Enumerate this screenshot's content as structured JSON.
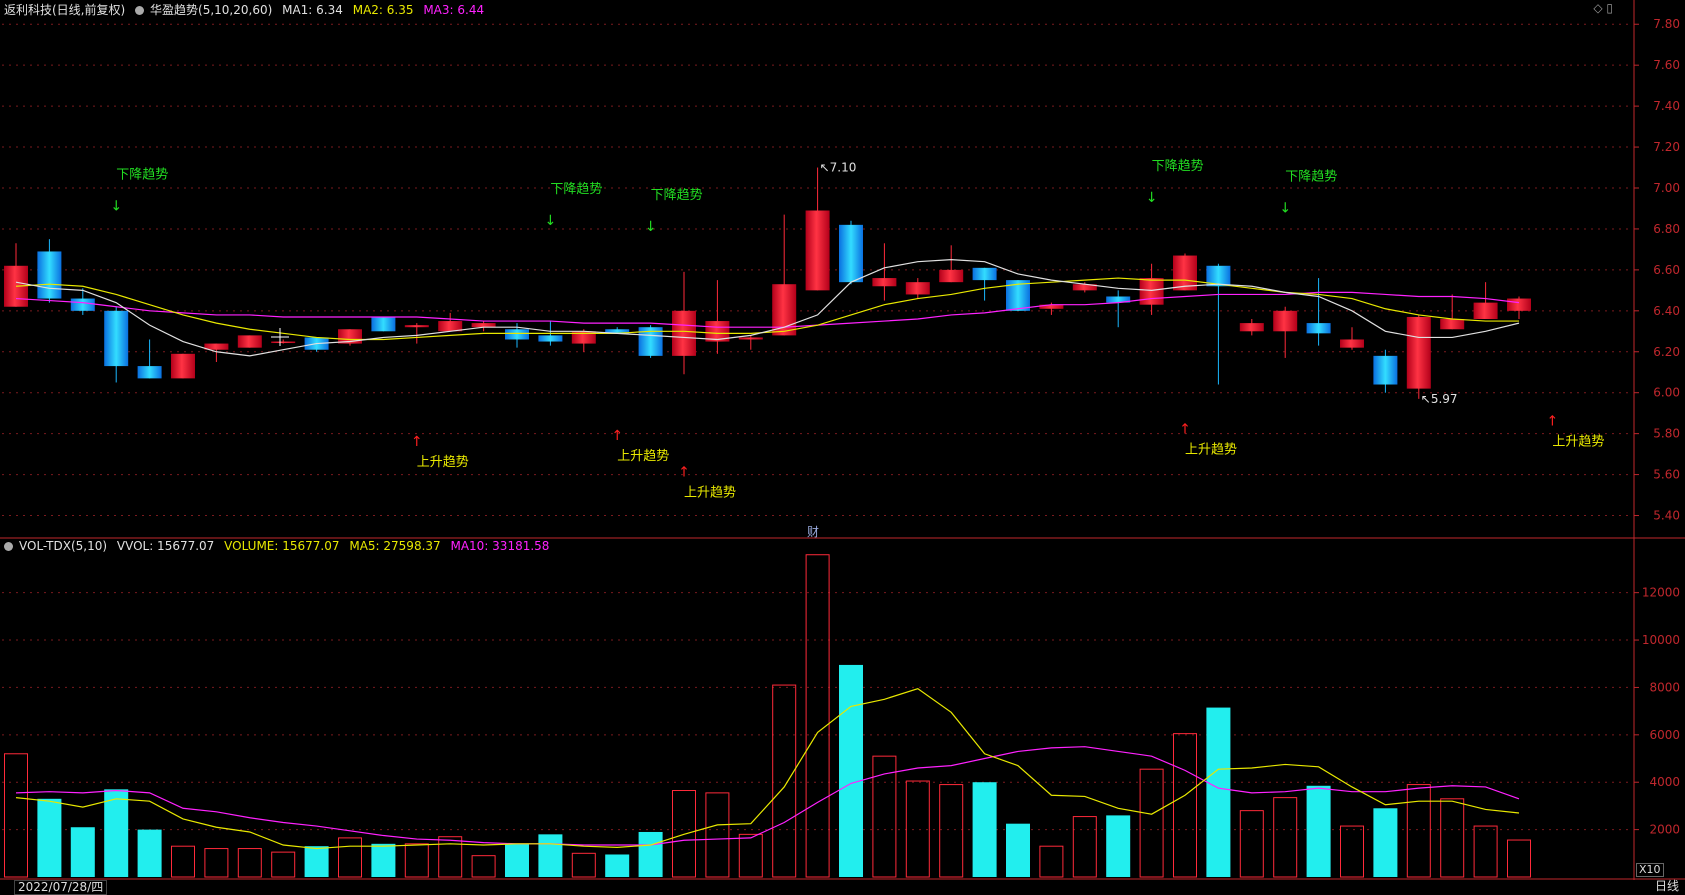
{
  "header": {
    "title": "返利科技(日线,前复权)",
    "indicator": "华盈趋势(5,10,20,60)",
    "ma1": "MA1: 6.34",
    "ma2": "MA2: 6.35",
    "ma3": "MA3: 6.44",
    "icons": "◇ ▯"
  },
  "vol_header": {
    "name": "VOL-TDX(5,10)",
    "vvol": "VVOL: 15677.07",
    "volume": "VOLUME: 15677.07",
    "ma5": "MA5: 27598.37",
    "ma10": "MA10: 33181.58"
  },
  "footer": {
    "date": "2022/07/28/四",
    "period": "日线",
    "scale": "X10",
    "marker": "财"
  },
  "colors": {
    "up": "#ff2a3a",
    "down": "#1ab8ff",
    "vol_down": "#22eeee",
    "ma1": "#e0e0e0",
    "ma2": "#e8e800",
    "ma3": "#ff22ff",
    "down_sig": "#22dd22",
    "up_sig": "#e8e800",
    "axis": "#c0272d"
  },
  "chart_data": [
    {
      "type": "candlestick",
      "yaxis_ticks": [
        "7.80",
        "7.60",
        "7.40",
        "7.20",
        "7.00",
        "6.80",
        "6.60",
        "6.40",
        "6.20",
        "6.00",
        "5.80",
        "5.60",
        "5.40"
      ],
      "ylim": [
        5.3,
        7.85
      ],
      "candles": [
        {
          "o": 6.42,
          "h": 6.73,
          "l": 6.42,
          "c": 6.62
        },
        {
          "o": 6.69,
          "h": 6.75,
          "l": 6.44,
          "c": 6.46
        },
        {
          "o": 6.46,
          "h": 6.51,
          "l": 6.38,
          "c": 6.4
        },
        {
          "o": 6.4,
          "h": 6.42,
          "l": 6.05,
          "c": 6.13
        },
        {
          "o": 6.13,
          "h": 6.26,
          "l": 6.07,
          "c": 6.07
        },
        {
          "o": 6.07,
          "h": 6.19,
          "l": 6.07,
          "c": 6.19
        },
        {
          "o": 6.21,
          "h": 6.24,
          "l": 6.15,
          "c": 6.24
        },
        {
          "o": 6.22,
          "h": 6.28,
          "l": 6.22,
          "c": 6.28
        },
        {
          "o": 6.25,
          "h": 6.26,
          "l": 6.24,
          "c": 6.25
        },
        {
          "o": 6.27,
          "h": 6.27,
          "l": 6.2,
          "c": 6.21
        },
        {
          "o": 6.24,
          "h": 6.31,
          "l": 6.23,
          "c": 6.31
        },
        {
          "o": 6.37,
          "h": 6.37,
          "l": 6.3,
          "c": 6.3
        },
        {
          "o": 6.32,
          "h": 6.34,
          "l": 6.24,
          "c": 6.33
        },
        {
          "o": 6.3,
          "h": 6.39,
          "l": 6.3,
          "c": 6.35
        },
        {
          "o": 6.32,
          "h": 6.35,
          "l": 6.3,
          "c": 6.34
        },
        {
          "o": 6.31,
          "h": 6.34,
          "l": 6.22,
          "c": 6.26
        },
        {
          "o": 6.28,
          "h": 6.35,
          "l": 6.23,
          "c": 6.25
        },
        {
          "o": 6.24,
          "h": 6.31,
          "l": 6.2,
          "c": 6.3
        },
        {
          "o": 6.31,
          "h": 6.32,
          "l": 6.29,
          "c": 6.29
        },
        {
          "o": 6.32,
          "h": 6.33,
          "l": 6.17,
          "c": 6.18
        },
        {
          "o": 6.18,
          "h": 6.59,
          "l": 6.09,
          "c": 6.4
        },
        {
          "o": 6.25,
          "h": 6.55,
          "l": 6.19,
          "c": 6.35
        },
        {
          "o": 6.26,
          "h": 6.28,
          "l": 6.21,
          "c": 6.27
        },
        {
          "o": 6.28,
          "h": 6.87,
          "l": 6.28,
          "c": 6.53
        },
        {
          "o": 6.5,
          "h": 7.1,
          "l": 6.5,
          "c": 6.89
        },
        {
          "o": 6.82,
          "h": 6.84,
          "l": 6.53,
          "c": 6.54
        },
        {
          "o": 6.52,
          "h": 6.73,
          "l": 6.45,
          "c": 6.56
        },
        {
          "o": 6.48,
          "h": 6.56,
          "l": 6.46,
          "c": 6.54
        },
        {
          "o": 6.54,
          "h": 6.72,
          "l": 6.54,
          "c": 6.6
        },
        {
          "o": 6.61,
          "h": 6.61,
          "l": 6.45,
          "c": 6.55
        },
        {
          "o": 6.55,
          "h": 6.55,
          "l": 6.4,
          "c": 6.4
        },
        {
          "o": 6.41,
          "h": 6.44,
          "l": 6.38,
          "c": 6.43
        },
        {
          "o": 6.5,
          "h": 6.54,
          "l": 6.49,
          "c": 6.53
        },
        {
          "o": 6.47,
          "h": 6.5,
          "l": 6.32,
          "c": 6.44
        },
        {
          "o": 6.43,
          "h": 6.63,
          "l": 6.38,
          "c": 6.56
        },
        {
          "o": 6.5,
          "h": 6.68,
          "l": 6.5,
          "c": 6.67
        },
        {
          "o": 6.62,
          "h": 6.63,
          "l": 6.04,
          "c": 6.52
        },
        {
          "o": 6.3,
          "h": 6.36,
          "l": 6.28,
          "c": 6.34
        },
        {
          "o": 6.3,
          "h": 6.42,
          "l": 6.17,
          "c": 6.4
        },
        {
          "o": 6.34,
          "h": 6.56,
          "l": 6.23,
          "c": 6.29
        },
        {
          "o": 6.22,
          "h": 6.32,
          "l": 6.21,
          "c": 6.26
        },
        {
          "o": 6.18,
          "h": 6.21,
          "l": 6.0,
          "c": 6.04
        },
        {
          "o": 6.02,
          "h": 6.38,
          "l": 5.97,
          "c": 6.37
        },
        {
          "o": 6.31,
          "h": 6.48,
          "l": 6.31,
          "c": 6.36
        },
        {
          "o": 6.36,
          "h": 6.54,
          "l": 6.36,
          "c": 6.44
        },
        {
          "o": 6.4,
          "h": 6.47,
          "l": 6.36,
          "c": 6.46
        }
      ],
      "ma1": [
        6.54,
        6.51,
        6.5,
        6.44,
        6.33,
        6.25,
        6.2,
        6.18,
        6.21,
        6.24,
        6.25,
        6.27,
        6.28,
        6.3,
        6.32,
        6.32,
        6.3,
        6.3,
        6.29,
        6.28,
        6.27,
        6.26,
        6.28,
        6.32,
        6.38,
        6.54,
        6.61,
        6.64,
        6.65,
        6.64,
        6.58,
        6.55,
        6.53,
        6.51,
        6.5,
        6.52,
        6.53,
        6.52,
        6.49,
        6.47,
        6.4,
        6.3,
        6.27,
        6.27,
        6.3,
        6.34
      ],
      "ma2": [
        6.52,
        6.53,
        6.52,
        6.48,
        6.43,
        6.38,
        6.34,
        6.31,
        6.29,
        6.27,
        6.26,
        6.26,
        6.27,
        6.28,
        6.29,
        6.29,
        6.29,
        6.29,
        6.29,
        6.3,
        6.3,
        6.29,
        6.29,
        6.3,
        6.33,
        6.38,
        6.43,
        6.46,
        6.48,
        6.51,
        6.53,
        6.54,
        6.55,
        6.56,
        6.55,
        6.55,
        6.53,
        6.51,
        6.49,
        6.48,
        6.46,
        6.41,
        6.38,
        6.36,
        6.35,
        6.35
      ],
      "ma3": [
        6.46,
        6.45,
        6.44,
        6.42,
        6.4,
        6.39,
        6.38,
        6.38,
        6.37,
        6.37,
        6.37,
        6.37,
        6.37,
        6.36,
        6.35,
        6.35,
        6.35,
        6.34,
        6.34,
        6.34,
        6.33,
        6.32,
        6.32,
        6.32,
        6.33,
        6.34,
        6.35,
        6.36,
        6.38,
        6.39,
        6.41,
        6.43,
        6.43,
        6.44,
        6.46,
        6.47,
        6.48,
        6.48,
        6.48,
        6.49,
        6.49,
        6.48,
        6.47,
        6.47,
        6.46,
        6.44
      ],
      "annotations": [
        {
          "i": 3,
          "type": "down",
          "text": "下降趋势",
          "y": 6.91
        },
        {
          "i": 12,
          "type": "up",
          "text": "上升趋势",
          "y": 5.72
        },
        {
          "i": 16,
          "type": "down",
          "text": "下降趋势",
          "y": 6.84
        },
        {
          "i": 18,
          "type": "up",
          "text": "上升趋势",
          "y": 5.75
        },
        {
          "i": 19,
          "type": "down",
          "text": "下降趋势",
          "y": 6.81
        },
        {
          "i": 20,
          "type": "up",
          "text": "上升趋势",
          "y": 5.57
        },
        {
          "i": 34,
          "type": "down",
          "text": "下降趋势",
          "y": 6.95
        },
        {
          "i": 35,
          "type": "up",
          "text": "上升趋势",
          "y": 5.78
        },
        {
          "i": 38,
          "type": "down",
          "text": "下降趋势",
          "y": 6.9
        },
        {
          "i": 46,
          "type": "up",
          "text": "上升趋势",
          "y": 5.82
        }
      ],
      "max_label": {
        "i": 24,
        "text": "7.10",
        "value": 7.1
      },
      "min_label": {
        "i": 42,
        "text": "5.97",
        "value": 5.97
      }
    },
    {
      "type": "bar",
      "yaxis_ticks": [
        "12000",
        "10000",
        "8000",
        "6000",
        "4000",
        "2000"
      ],
      "ylim": [
        0,
        13800
      ],
      "values": [
        5200,
        3300,
        2100,
        3700,
        2000,
        1300,
        1200,
        1200,
        1050,
        1300,
        1650,
        1400,
        1400,
        1700,
        900,
        1400,
        1800,
        1000,
        950,
        1900,
        3650,
        3550,
        1800,
        8100,
        13600,
        8950,
        5100,
        4050,
        3900,
        4000,
        2250,
        1300,
        2550,
        2600,
        4550,
        6050,
        7150,
        2800,
        3350,
        3850,
        2150,
        2900,
        3900,
        3300,
        2150,
        1560
      ],
      "ma5": [
        3350,
        3200,
        2950,
        3300,
        3200,
        2450,
        2100,
        1900,
        1350,
        1200,
        1300,
        1300,
        1350,
        1400,
        1350,
        1400,
        1400,
        1300,
        1250,
        1350,
        1800,
        2200,
        2250,
        3800,
        6100,
        7200,
        7500,
        7950,
        6950,
        5200,
        4700,
        3450,
        3400,
        2900,
        2650,
        3450,
        4550,
        4600,
        4750,
        4650,
        3800,
        3050,
        3200,
        3200,
        2850,
        2700
      ],
      "ma10": [
        3550,
        3600,
        3550,
        3650,
        3550,
        2900,
        2750,
        2500,
        2300,
        2150,
        1950,
        1750,
        1600,
        1550,
        1450,
        1400,
        1400,
        1350,
        1350,
        1350,
        1550,
        1600,
        1650,
        2300,
        3150,
        3950,
        4350,
        4600,
        4700,
        5000,
        5300,
        5450,
        5500,
        5300,
        5100,
        4500,
        3750,
        3550,
        3600,
        3750,
        3600,
        3600,
        3750,
        3850,
        3800,
        3300
      ]
    }
  ]
}
